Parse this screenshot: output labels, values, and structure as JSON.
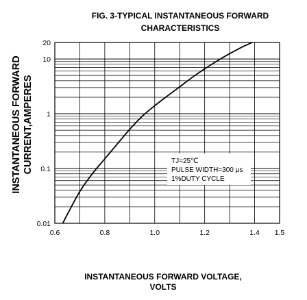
{
  "chart_data": {
    "type": "line",
    "title_line1": "FIG. 3-TYPICAL INSTANTANEOUS FORWARD",
    "title_line2": "CHARACTERISTICS",
    "ylabel_line1": "INSTANTANEOUS FORWARD",
    "ylabel_line2": "CURRENT,AMPERES",
    "xlabel_line1": "INSTANTANEOUS FORWARD VOLTAGE,",
    "xlabel_line2": "VOLTS",
    "x_scale": "linear",
    "y_scale": "log",
    "xlim": [
      0.6,
      1.5
    ],
    "ylim": [
      0.01,
      20
    ],
    "x_ticks": [
      "0.6",
      "0.8",
      "1.0",
      "1.2",
      "1.4",
      "1.5"
    ],
    "y_ticks": [
      "20",
      "10",
      "1",
      "0.1",
      "0.01"
    ],
    "grid": true,
    "annotation_lines": [
      "TJ=25℃",
      "PULSE WIDTH=300 μs",
      "1%DUTY CYCLE"
    ],
    "series": [
      {
        "x": [
          0.632,
          0.65,
          0.7,
          0.75,
          0.8,
          0.85,
          0.9,
          0.95,
          1.0,
          1.05,
          1.1,
          1.15,
          1.2,
          1.25,
          1.3,
          1.35,
          1.39
        ],
        "y": [
          0.01,
          0.0145,
          0.038,
          0.08,
          0.15,
          0.28,
          0.52,
          0.9,
          1.4,
          2.1,
          3.1,
          4.6,
          6.6,
          9.2,
          12.5,
          16.5,
          20
        ]
      }
    ]
  }
}
